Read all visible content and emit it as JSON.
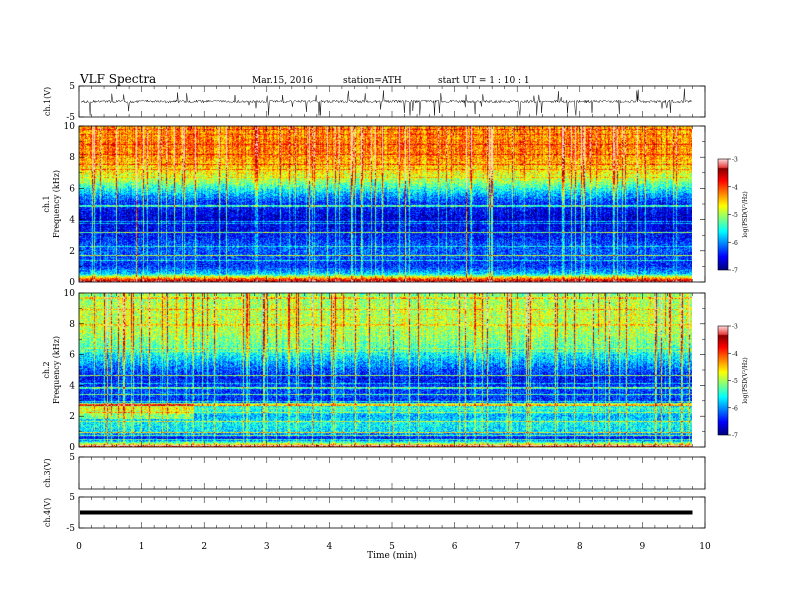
{
  "header": {
    "title": "VLF  Spectra",
    "date": "Mar.15, 2016",
    "station": "station=ATH",
    "start_ut": "start  UT  =   1  : 10 : 1"
  },
  "chart_data": [
    {
      "type": "line",
      "panel": "ch1-waveform",
      "ylabel": "ch.1(V)",
      "ylim": [
        -5,
        5
      ],
      "y_ticks": [
        "5",
        "-5"
      ],
      "baseline_v": 0.0,
      "color": "#000000"
    },
    {
      "type": "heatmap",
      "panel": "ch1-spectrogram",
      "ylabel_line1": "ch.1",
      "ylabel_line2": "Frequency  (kHz)",
      "xlim": [
        0,
        10
      ],
      "ylim": [
        0,
        10
      ],
      "y_ticks": [
        "0",
        "2",
        "4",
        "6",
        "8",
        "10"
      ],
      "data_end_min": 9.8,
      "colorbar": {
        "label": "log(PSD(V²/Hz)",
        "range": [
          -7,
          -3
        ],
        "ticks": [
          "-3",
          "-4",
          "-5",
          "-6",
          "-7"
        ]
      },
      "psd_profile_khz": [
        0,
        0.5,
        1,
        1.5,
        2,
        2.5,
        3,
        3.5,
        4,
        4.5,
        5,
        5.5,
        6,
        6.5,
        7,
        7.5,
        8,
        8.5,
        9,
        9.5,
        10
      ],
      "psd_profile_log": [
        -3.3,
        -5.8,
        -6.4,
        -6.3,
        -6.2,
        -6.3,
        -6.5,
        -6.6,
        -6.7,
        -6.6,
        -6.4,
        -6.0,
        -5.5,
        -5.0,
        -4.7,
        -4.5,
        -4.3,
        -4.2,
        -4.2,
        -4.3,
        -4.3
      ]
    },
    {
      "type": "heatmap",
      "panel": "ch2-spectrogram",
      "ylabel_line1": "ch.2",
      "ylabel_line2": "Frequency  (kHz)",
      "xlim": [
        0,
        10
      ],
      "ylim": [
        0,
        10
      ],
      "y_ticks": [
        "0",
        "2",
        "4",
        "6",
        "8",
        "10"
      ],
      "data_end_min": 9.8,
      "colorbar": {
        "label": "log(PSD(V²/Hz)",
        "range": [
          -7,
          -3
        ],
        "ticks": [
          "-3",
          "-4",
          "-5",
          "-6",
          "-7"
        ]
      },
      "psd_profile_khz": [
        0,
        0.5,
        1,
        1.5,
        2,
        2.5,
        3,
        3.5,
        4,
        4.5,
        5,
        5.5,
        6,
        6.5,
        7,
        7.5,
        8,
        8.5,
        9,
        9.5,
        10
      ],
      "psd_profile_log": [
        -4.0,
        -6.6,
        -5.7,
        -5.6,
        -5.9,
        -5.4,
        -6.4,
        -6.3,
        -6.4,
        -6.5,
        -6.2,
        -5.9,
        -5.6,
        -5.3,
        -5.1,
        -5.0,
        -4.9,
        -4.9,
        -4.9,
        -5.0,
        -5.1
      ]
    },
    {
      "type": "line",
      "panel": "ch3-waveform",
      "ylabel": "ch.3(V)",
      "ylim": [
        -5,
        5
      ],
      "y_ticks": [
        "5"
      ],
      "color": "#000000"
    },
    {
      "type": "line",
      "panel": "ch4-waveform",
      "ylabel": "ch.4(V)",
      "ylim": [
        -5,
        5
      ],
      "y_ticks": [
        "5",
        "-5"
      ],
      "baseline_v": 0.0,
      "color": "#000000"
    }
  ],
  "x_axis": {
    "xlabel": "Time  (min)",
    "xlim": [
      0,
      10
    ],
    "ticks": [
      "0",
      "1",
      "2",
      "3",
      "4",
      "5",
      "6",
      "7",
      "8",
      "9",
      "10"
    ]
  }
}
